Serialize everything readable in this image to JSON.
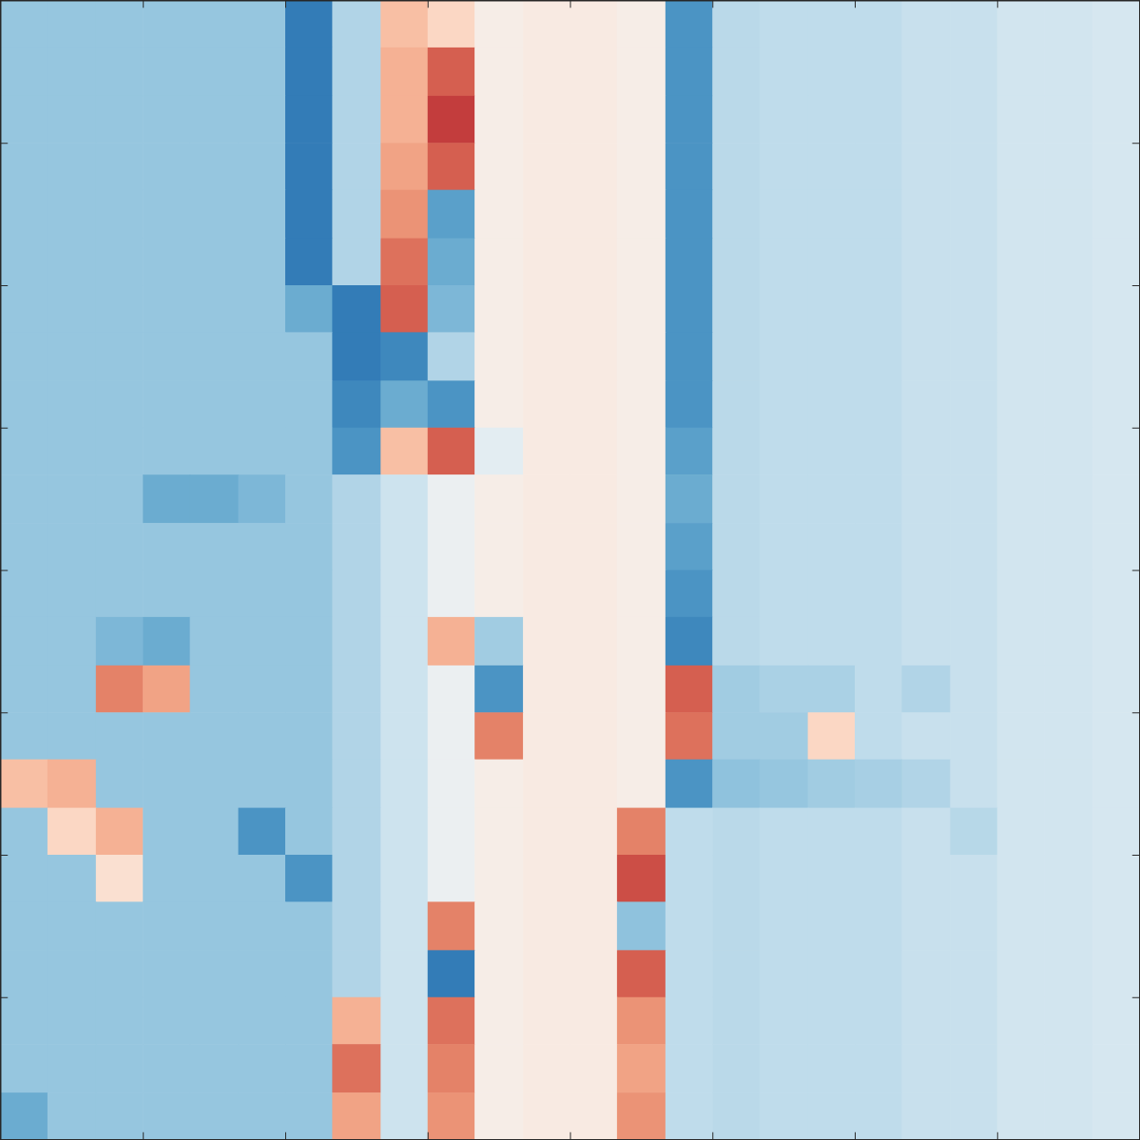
{
  "chart_data": {
    "type": "heatmap",
    "xlim": [
      0,
      8
    ],
    "ylim": [
      0,
      8
    ],
    "xticks": [
      1,
      2,
      3,
      4,
      5,
      6,
      7
    ],
    "yticks": [
      1,
      2,
      3,
      4,
      5,
      6,
      7
    ],
    "tick_labels": false,
    "zlim": [
      -1,
      1
    ],
    "x_edges": [
      0,
      0.33,
      0.67,
      1,
      1.33,
      1.67,
      2,
      2.33,
      2.67,
      3,
      3.33,
      3.67,
      4,
      4.33,
      4.67,
      5,
      5.33,
      5.67,
      6,
      6.33,
      6.67,
      7,
      7.33,
      7.67,
      8
    ],
    "y_edges": [
      8,
      7.67,
      7.33,
      7,
      6.67,
      6.33,
      6,
      5.67,
      5.33,
      5,
      4.67,
      4.33,
      4,
      3.67,
      3.33,
      3,
      2.67,
      2.33,
      2,
      1.67,
      1.33,
      1,
      0.67,
      0.33,
      0
    ],
    "cells": [
      [
        -0.38,
        -0.38,
        -0.38,
        -0.38,
        -0.38,
        -0.38,
        -0.7,
        -0.3,
        0.3,
        0.2,
        0.05,
        0.08,
        0.08,
        0.05,
        -0.6,
        -0.27,
        -0.25,
        -0.25,
        -0.25,
        -0.22,
        -0.22,
        -0.18,
        -0.18,
        -0.16
      ],
      [
        -0.38,
        -0.38,
        -0.38,
        -0.38,
        -0.38,
        -0.38,
        -0.7,
        -0.3,
        0.35,
        0.6,
        0.05,
        0.08,
        0.08,
        0.05,
        -0.6,
        -0.27,
        -0.25,
        -0.25,
        -0.25,
        -0.22,
        -0.22,
        -0.18,
        -0.18,
        -0.16
      ],
      [
        -0.38,
        -0.38,
        -0.38,
        -0.38,
        -0.38,
        -0.38,
        -0.7,
        -0.3,
        0.35,
        0.7,
        0.05,
        0.08,
        0.08,
        0.05,
        -0.6,
        -0.27,
        -0.25,
        -0.25,
        -0.25,
        -0.22,
        -0.22,
        -0.18,
        -0.18,
        -0.16
      ],
      [
        -0.38,
        -0.38,
        -0.38,
        -0.38,
        -0.38,
        -0.38,
        -0.7,
        -0.3,
        0.4,
        0.6,
        0.05,
        0.08,
        0.08,
        0.05,
        -0.6,
        -0.27,
        -0.25,
        -0.25,
        -0.25,
        -0.22,
        -0.22,
        -0.18,
        -0.18,
        -0.16
      ],
      [
        -0.38,
        -0.38,
        -0.38,
        -0.38,
        -0.38,
        -0.38,
        -0.7,
        -0.3,
        0.45,
        -0.55,
        0.05,
        0.08,
        0.08,
        0.05,
        -0.6,
        -0.27,
        -0.25,
        -0.25,
        -0.25,
        -0.22,
        -0.22,
        -0.18,
        -0.18,
        -0.16
      ],
      [
        -0.38,
        -0.38,
        -0.38,
        -0.38,
        -0.38,
        -0.38,
        -0.7,
        -0.3,
        0.55,
        -0.5,
        0.05,
        0.08,
        0.08,
        0.05,
        -0.6,
        -0.27,
        -0.25,
        -0.25,
        -0.25,
        -0.22,
        -0.22,
        -0.18,
        -0.18,
        -0.16
      ],
      [
        -0.38,
        -0.38,
        -0.38,
        -0.38,
        -0.38,
        -0.38,
        -0.5,
        -0.7,
        0.6,
        -0.45,
        0.05,
        0.08,
        0.08,
        0.05,
        -0.6,
        -0.27,
        -0.25,
        -0.25,
        -0.25,
        -0.22,
        -0.22,
        -0.18,
        -0.18,
        -0.16
      ],
      [
        -0.38,
        -0.38,
        -0.38,
        -0.38,
        -0.38,
        -0.38,
        -0.38,
        -0.7,
        -0.65,
        -0.3,
        0.05,
        0.08,
        0.08,
        0.05,
        -0.6,
        -0.27,
        -0.25,
        -0.25,
        -0.25,
        -0.22,
        -0.22,
        -0.18,
        -0.18,
        -0.16
      ],
      [
        -0.38,
        -0.38,
        -0.38,
        -0.38,
        -0.38,
        -0.38,
        -0.38,
        -0.65,
        -0.5,
        -0.6,
        0.05,
        0.08,
        0.08,
        0.05,
        -0.6,
        -0.27,
        -0.25,
        -0.25,
        -0.25,
        -0.22,
        -0.22,
        -0.18,
        -0.18,
        -0.16
      ],
      [
        -0.38,
        -0.38,
        -0.38,
        -0.38,
        -0.38,
        -0.38,
        -0.38,
        -0.6,
        0.3,
        0.6,
        -0.1,
        0.08,
        0.08,
        0.05,
        -0.55,
        -0.27,
        -0.25,
        -0.25,
        -0.25,
        -0.22,
        -0.22,
        -0.18,
        -0.18,
        -0.16
      ],
      [
        -0.38,
        -0.38,
        -0.38,
        -0.5,
        -0.5,
        -0.45,
        -0.38,
        -0.3,
        -0.2,
        -0.05,
        0.05,
        0.08,
        0.08,
        0.05,
        -0.5,
        -0.27,
        -0.25,
        -0.25,
        -0.25,
        -0.22,
        -0.22,
        -0.18,
        -0.18,
        -0.16
      ],
      [
        -0.38,
        -0.38,
        -0.38,
        -0.38,
        -0.38,
        -0.38,
        -0.38,
        -0.3,
        -0.2,
        -0.05,
        0.05,
        0.08,
        0.08,
        0.05,
        -0.55,
        -0.27,
        -0.25,
        -0.25,
        -0.25,
        -0.22,
        -0.22,
        -0.18,
        -0.18,
        -0.16
      ],
      [
        -0.38,
        -0.38,
        -0.38,
        -0.38,
        -0.38,
        -0.38,
        -0.38,
        -0.3,
        -0.2,
        -0.05,
        0.05,
        0.08,
        0.08,
        0.05,
        -0.6,
        -0.27,
        -0.25,
        -0.25,
        -0.25,
        -0.22,
        -0.22,
        -0.18,
        -0.18,
        -0.16
      ],
      [
        -0.38,
        -0.38,
        -0.45,
        -0.5,
        -0.38,
        -0.38,
        -0.38,
        -0.3,
        -0.2,
        0.35,
        -0.35,
        0.08,
        0.08,
        0.05,
        -0.65,
        -0.27,
        -0.25,
        -0.25,
        -0.25,
        -0.22,
        -0.22,
        -0.18,
        -0.18,
        -0.16
      ],
      [
        -0.38,
        -0.38,
        0.5,
        0.4,
        -0.38,
        -0.38,
        -0.38,
        -0.3,
        -0.2,
        -0.05,
        -0.6,
        0.08,
        0.08,
        0.05,
        0.6,
        -0.35,
        -0.32,
        -0.32,
        -0.25,
        -0.3,
        -0.22,
        -0.18,
        -0.18,
        -0.16
      ],
      [
        -0.38,
        -0.38,
        -0.38,
        -0.38,
        -0.38,
        -0.38,
        -0.38,
        -0.3,
        -0.2,
        -0.05,
        0.5,
        0.08,
        0.08,
        0.05,
        0.55,
        -0.35,
        -0.35,
        0.2,
        -0.25,
        -0.22,
        -0.22,
        -0.18,
        -0.18,
        -0.16
      ],
      [
        0.3,
        0.35,
        -0.38,
        -0.38,
        -0.38,
        -0.38,
        -0.38,
        -0.3,
        -0.2,
        -0.05,
        0.05,
        0.08,
        0.08,
        0.05,
        -0.6,
        -0.4,
        -0.38,
        -0.35,
        -0.33,
        -0.3,
        -0.22,
        -0.18,
        -0.18,
        -0.16
      ],
      [
        -0.38,
        0.2,
        0.35,
        -0.38,
        -0.38,
        -0.6,
        -0.38,
        -0.3,
        -0.2,
        -0.05,
        0.05,
        0.08,
        0.08,
        0.5,
        -0.25,
        -0.27,
        -0.25,
        -0.25,
        -0.25,
        -0.22,
        -0.28,
        -0.18,
        -0.18,
        -0.16
      ],
      [
        -0.38,
        -0.38,
        0.15,
        -0.38,
        -0.38,
        -0.38,
        -0.6,
        -0.3,
        -0.2,
        -0.05,
        0.05,
        0.08,
        0.08,
        0.65,
        -0.25,
        -0.27,
        -0.25,
        -0.25,
        -0.25,
        -0.22,
        -0.22,
        -0.18,
        -0.18,
        -0.16
      ],
      [
        -0.38,
        -0.38,
        -0.38,
        -0.38,
        -0.38,
        -0.38,
        -0.38,
        -0.3,
        -0.2,
        0.5,
        0.05,
        0.08,
        0.08,
        -0.4,
        -0.25,
        -0.27,
        -0.25,
        -0.25,
        -0.25,
        -0.22,
        -0.22,
        -0.18,
        -0.18,
        -0.16
      ],
      [
        -0.38,
        -0.38,
        -0.38,
        -0.38,
        -0.38,
        -0.38,
        -0.38,
        -0.3,
        -0.2,
        -0.7,
        0.05,
        0.08,
        0.08,
        0.6,
        -0.25,
        -0.27,
        -0.25,
        -0.25,
        -0.25,
        -0.22,
        -0.22,
        -0.18,
        -0.18,
        -0.16
      ],
      [
        -0.38,
        -0.38,
        -0.38,
        -0.38,
        -0.38,
        -0.38,
        -0.38,
        0.35,
        -0.2,
        0.55,
        0.05,
        0.08,
        0.08,
        0.45,
        -0.25,
        -0.27,
        -0.25,
        -0.25,
        -0.25,
        -0.22,
        -0.22,
        -0.18,
        -0.18,
        -0.16
      ],
      [
        -0.38,
        -0.38,
        -0.38,
        -0.38,
        -0.38,
        -0.38,
        -0.38,
        0.55,
        -0.2,
        0.5,
        0.05,
        0.08,
        0.08,
        0.4,
        -0.25,
        -0.27,
        -0.25,
        -0.25,
        -0.25,
        -0.22,
        -0.22,
        -0.18,
        -0.18,
        -0.16
      ],
      [
        -0.5,
        -0.38,
        -0.38,
        -0.38,
        -0.38,
        -0.38,
        -0.38,
        0.4,
        -0.2,
        0.45,
        0.05,
        0.08,
        0.08,
        0.45,
        -0.25,
        -0.27,
        -0.25,
        -0.25,
        -0.25,
        -0.22,
        -0.22,
        -0.18,
        -0.18,
        -0.16
      ]
    ]
  }
}
